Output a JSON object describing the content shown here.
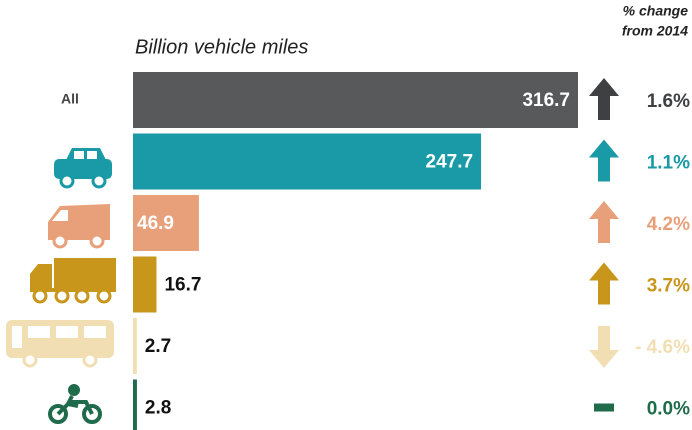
{
  "chart_data": {
    "type": "bar",
    "subtitle": "Billion vehicle miles",
    "change_header": [
      "% change",
      "from 2014"
    ],
    "categories": [
      "All",
      null,
      null,
      null,
      null,
      null
    ],
    "values": [
      316.7,
      247.7,
      46.9,
      16.7,
      2.7,
      2.8
    ],
    "colors": [
      "#58595b",
      "#1a9aa6",
      "#e8a07a",
      "#c9961c",
      "#f1deb3",
      "#1f6b4c"
    ],
    "change": [
      1.6,
      1.1,
      4.2,
      3.7,
      -4.6,
      0.0
    ],
    "change_labels": [
      "1.6%",
      "1.1%",
      "4.2%",
      "3.7%",
      "- 4.6%",
      "0.0%"
    ]
  }
}
